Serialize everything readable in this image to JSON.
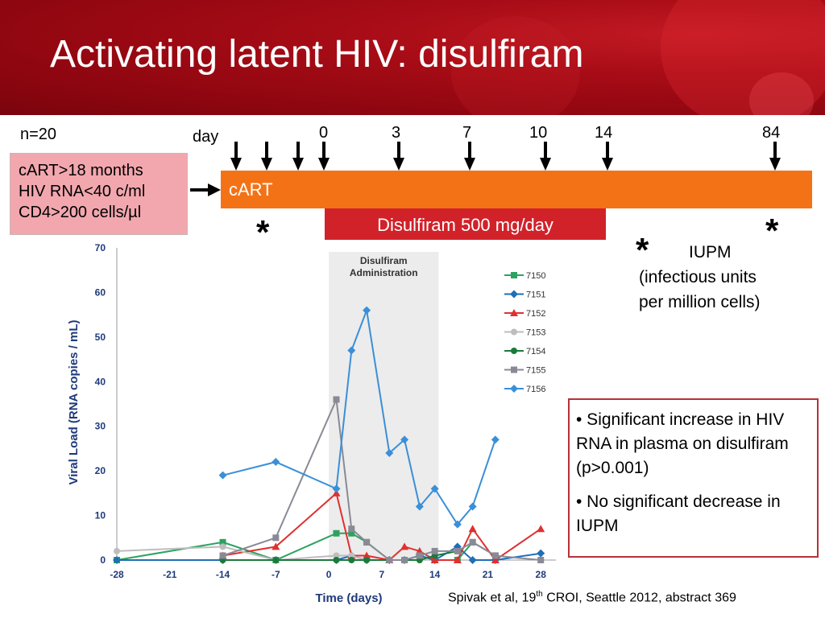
{
  "slide": {
    "title": "Activating latent HIV: disulfiram",
    "n_label": "n=20",
    "day_label": "day",
    "day_markers": [
      "0",
      "3",
      "7",
      "10",
      "14",
      "84"
    ],
    "criteria": [
      "cART>18 months",
      "HIV RNA<40 c/ml",
      "CD4>200 cells/µl"
    ],
    "cart_label": "cART",
    "disulfiram_label": "Disulfiram 500 mg/day",
    "star": "*",
    "iupm_legend": [
      "IUPM",
      "(infectious units",
      "per million cells)"
    ],
    "conclusions": [
      "• Significant increase in HIV RNA in plasma on disulfiram (p>0.001)",
      "• No significant decrease in IUPM"
    ],
    "citation": {
      "prefix": "Spivak et al, 19",
      "sup": "th",
      "suffix": " CROI, Seattle 2012, abstract 369"
    }
  },
  "colors": {
    "header": "#a80c16",
    "cart_bar": "#f47216",
    "disulfiram_bar": "#d1222a",
    "criteria_box": "#f2a7ae",
    "axis_text": "#1f3a7a",
    "shade": "#ececec"
  },
  "chart_data": {
    "type": "line",
    "xlabel": "Time (days)",
    "ylabel": "Viral Load (RNA copies / mL)",
    "xlim": [
      -28,
      30
    ],
    "ylim": [
      0,
      70
    ],
    "xticks": [
      -28,
      -21,
      -14,
      -7,
      0,
      7,
      14,
      21,
      28
    ],
    "yticks": [
      0,
      10,
      20,
      30,
      40,
      50,
      60,
      70
    ],
    "shaded_region": {
      "x0": 0,
      "x1": 14.5,
      "label_line1": "Disulfiram",
      "label_line2": "Administration"
    },
    "legend_position": "right",
    "series": [
      {
        "name": "7150",
        "color": "#2ca25f",
        "marker": "square",
        "x": [
          -28,
          -14,
          -7,
          1,
          3,
          5,
          8,
          10,
          12,
          14,
          17,
          19,
          22
        ],
        "y": [
          0,
          4,
          0,
          6,
          6,
          4,
          0,
          0,
          1,
          0,
          0,
          4,
          1
        ]
      },
      {
        "name": "7151",
        "color": "#1f6fb5",
        "marker": "diamond",
        "x": [
          -28,
          -14,
          -7,
          1,
          3,
          5,
          8,
          10,
          12,
          14,
          17,
          19,
          22,
          28
        ],
        "y": [
          0,
          0,
          0,
          0,
          1,
          0,
          0,
          0,
          1,
          0,
          3,
          0,
          0,
          1.5
        ]
      },
      {
        "name": "7152",
        "color": "#e03030",
        "marker": "triangle",
        "x": [
          -14,
          -7,
          1,
          3,
          5,
          8,
          10,
          12,
          14,
          17,
          19,
          22,
          28
        ],
        "y": [
          1,
          3,
          15,
          1,
          1,
          0,
          3,
          2,
          0,
          0,
          7,
          0,
          7
        ]
      },
      {
        "name": "7153",
        "color": "#bdbdbd",
        "marker": "circle",
        "x": [
          -28,
          -14,
          -7,
          1,
          3,
          5,
          8,
          10,
          12
        ],
        "y": [
          2,
          3,
          0,
          1,
          1,
          0,
          0,
          0,
          0
        ]
      },
      {
        "name": "7154",
        "color": "#1a7a3a",
        "marker": "circle",
        "x": [
          -14,
          -7,
          1,
          3,
          5,
          8,
          10,
          12,
          14,
          17
        ],
        "y": [
          0,
          0,
          0,
          0,
          0,
          0,
          0,
          0,
          1,
          2
        ]
      },
      {
        "name": "7155",
        "color": "#8a8a96",
        "marker": "square",
        "x": [
          -14,
          -7,
          1,
          3,
          5,
          8,
          10,
          12,
          14,
          17,
          19,
          22,
          28
        ],
        "y": [
          1,
          5,
          36,
          7,
          4,
          0,
          0,
          1,
          2,
          2,
          4,
          1,
          0
        ]
      },
      {
        "name": "7156",
        "color": "#3a8fd8",
        "marker": "diamond",
        "x": [
          -14,
          -7,
          1,
          3,
          5,
          8,
          10,
          12,
          14,
          17,
          19,
          22
        ],
        "y": [
          19,
          22,
          16,
          47,
          56,
          24,
          27,
          12,
          16,
          8,
          12,
          27
        ]
      }
    ]
  }
}
